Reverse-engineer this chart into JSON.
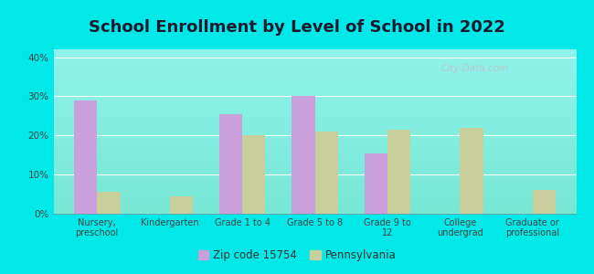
{
  "title": "School Enrollment by Level of School in 2022",
  "categories": [
    "Nursery,\npreschool",
    "Kindergarten",
    "Grade 1 to 4",
    "Grade 5 to 8",
    "Grade 9 to\n12",
    "College\nundergrad",
    "Graduate or\nprofessional"
  ],
  "zip_values": [
    29.0,
    0.0,
    25.5,
    30.0,
    15.5,
    0.0,
    0.0
  ],
  "pa_values": [
    5.5,
    4.5,
    20.0,
    21.0,
    21.5,
    22.0,
    6.0
  ],
  "zip_color": "#c9a0dc",
  "pa_color": "#c8cf9a",
  "background_outer": "#00e8e8",
  "background_inner_top": "#f5fdf5",
  "background_inner_bottom": "#d4edd4",
  "ylim": [
    0,
    42
  ],
  "yticks": [
    0,
    10,
    20,
    30,
    40
  ],
  "ytick_labels": [
    "0%",
    "10%",
    "20%",
    "30%",
    "40%"
  ],
  "zip_label": "Zip code 15754",
  "pa_label": "Pennsylvania",
  "title_fontsize": 13,
  "bar_width": 0.32,
  "watermark": "City-Data.com",
  "watermark_color": "#c0c0c0"
}
